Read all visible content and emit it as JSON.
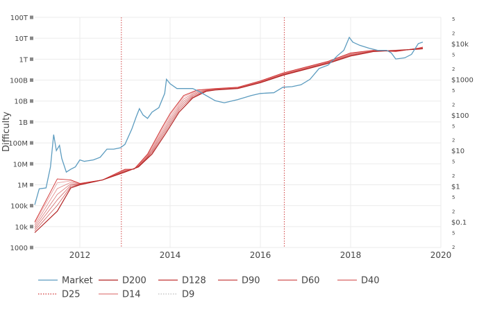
{
  "chart_data": {
    "type": "line",
    "ylabel": "Difficulty",
    "x_range": [
      2011.0,
      2020.0
    ],
    "x_ticks": [
      "2012",
      "2014",
      "2016",
      "2018",
      "2020"
    ],
    "x_tick_values": [
      2012,
      2014,
      2016,
      2018,
      2020
    ],
    "y_left": {
      "scale": "log",
      "range": [
        1000,
        100000000000000
      ],
      "tick_labels": [
        "1000",
        "10k",
        "100k",
        "1M",
        "10M",
        "100M",
        "1B",
        "10B",
        "100B",
        "1T",
        "10T",
        "100T"
      ],
      "tick_values": [
        1000.0,
        10000.0,
        100000.0,
        1000000.0,
        10000000.0,
        100000000.0,
        1000000000.0,
        10000000000.0,
        100000000000.0,
        1000000000000.0,
        10000000000000.0,
        100000000000000.0
      ]
    },
    "y_right": {
      "scale": "log",
      "tick_labels": [
        "$0.1",
        "$1",
        "$10",
        "$100",
        "$1000",
        "$10k"
      ],
      "tick_values": [
        0.1,
        1,
        10,
        100,
        1000,
        10000
      ],
      "minor_labels": [
        "2",
        "5"
      ]
    },
    "vlines": [
      2012.92,
      2016.53
    ],
    "legend": {
      "placement": "bottom",
      "items": [
        {
          "name": "Market",
          "color": "#5b9bbf",
          "style": "solid"
        },
        {
          "name": "D200",
          "color": "#b22222",
          "style": "solid"
        },
        {
          "name": "D128",
          "color": "#c03030",
          "style": "solid"
        },
        {
          "name": "D90",
          "color": "#c84040",
          "style": "solid"
        },
        {
          "name": "D60",
          "color": "#d05050",
          "style": "solid"
        },
        {
          "name": "D40",
          "color": "#d86060",
          "style": "solid"
        },
        {
          "name": "D25",
          "color": "#d03030",
          "style": "dotted"
        },
        {
          "name": "D14",
          "color": "#e08080",
          "style": "solid"
        },
        {
          "name": "D9",
          "color": "#bbbbbb",
          "style": "dotted"
        }
      ]
    },
    "series": [
      {
        "name": "Market",
        "x": [
          2011.0,
          2011.1,
          2011.25,
          2011.35,
          2011.42,
          2011.48,
          2011.55,
          2011.6,
          2011.7,
          2011.8,
          2011.9,
          2012.0,
          2012.1,
          2012.3,
          2012.45,
          2012.6,
          2012.75,
          2012.9,
          2013.0,
          2013.15,
          2013.25,
          2013.32,
          2013.4,
          2013.5,
          2013.6,
          2013.75,
          2013.88,
          2013.92,
          2014.0,
          2014.15,
          2014.3,
          2014.5,
          2014.65,
          2014.8,
          2015.0,
          2015.2,
          2015.5,
          2015.8,
          2016.0,
          2016.3,
          2016.5,
          2016.7,
          2016.9,
          2017.1,
          2017.3,
          2017.5,
          2017.7,
          2017.85,
          2017.97,
          2018.05,
          2018.2,
          2018.4,
          2018.6,
          2018.8,
          2018.9,
          2019.0,
          2019.2,
          2019.35,
          2019.5,
          2019.6
        ],
        "y": [
          0.3,
          0.85,
          0.9,
          3.5,
          28,
          10,
          14,
          6,
          2.5,
          3.0,
          3.5,
          5.5,
          5,
          5.5,
          6.5,
          11,
          11,
          12,
          15,
          40,
          90,
          150,
          100,
          80,
          120,
          160,
          400,
          1000,
          750,
          550,
          550,
          550,
          450,
          350,
          250,
          220,
          270,
          350,
          400,
          420,
          600,
          620,
          700,
          1000,
          2000,
          2500,
          4500,
          6500,
          15000,
          11000,
          9000,
          7500,
          6500,
          6500,
          5500,
          3700,
          4000,
          5000,
          10000,
          11000
        ]
      },
      {
        "name": "D200",
        "x": [
          2011.0,
          2011.5,
          2011.8,
          2012.0,
          2012.5,
          2013.0,
          2013.3,
          2013.6,
          2013.9,
          2014.2,
          2014.5,
          2014.8,
          2015.0,
          2015.5,
          2016.0,
          2016.5,
          2017.0,
          2017.5,
          2018.0,
          2018.5,
          2019.0,
          2019.5,
          2019.6
        ],
        "y": [
          0.05,
          0.2,
          0.9,
          1.1,
          1.5,
          2.5,
          3.5,
          8,
          30,
          120,
          300,
          460,
          500,
          550,
          800,
          1300,
          1900,
          2800,
          4500,
          6000,
          6500,
          7000,
          7200
        ]
      },
      {
        "name": "D25",
        "x": [
          2011.0,
          2011.2,
          2011.5,
          2011.8,
          2012.0,
          2012.5,
          2013.0,
          2013.2,
          2013.5,
          2013.8,
          2014.0,
          2014.3,
          2014.6,
          2015.0,
          2015.5,
          2016.0,
          2016.5,
          2017.0,
          2017.5,
          2018.0,
          2018.5,
          2019.0,
          2019.5,
          2019.6
        ],
        "y": [
          0.1,
          0.3,
          1.6,
          1.5,
          1.2,
          1.5,
          3,
          3,
          8,
          40,
          110,
          350,
          500,
          550,
          600,
          900,
          1500,
          2200,
          3200,
          5500,
          6500,
          6000,
          7500,
          8000
        ]
      }
    ]
  }
}
